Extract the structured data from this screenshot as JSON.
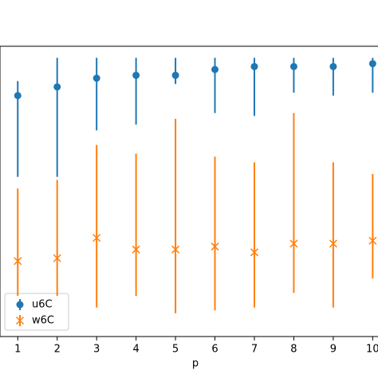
{
  "chart_data": {
    "type": "errorbar",
    "x_label": "p",
    "x": [
      1,
      2,
      3,
      4,
      5,
      6,
      7,
      8,
      9,
      10
    ],
    "xlim": [
      0.55,
      10.6
    ],
    "xticks": [
      1,
      2,
      3,
      4,
      5,
      6,
      7,
      8,
      9,
      10
    ],
    "ylim": [
      0,
      1
    ],
    "legend": "lower left",
    "series": [
      {
        "name": "u6C",
        "color": "#1f77b4",
        "marker": "circle",
        "values": [
          0.83,
          0.86,
          0.89,
          0.9,
          0.9,
          0.92,
          0.93,
          0.93,
          0.93,
          0.94
        ],
        "lows": [
          0.55,
          0.55,
          0.71,
          0.73,
          0.87,
          0.77,
          0.76,
          0.84,
          0.83,
          0.84
        ],
        "highs": [
          0.88,
          0.96,
          0.96,
          0.96,
          0.96,
          0.96,
          0.96,
          0.96,
          0.96,
          0.96
        ]
      },
      {
        "name": "w6C",
        "color": "#ff7f0e",
        "marker": "x",
        "values": [
          0.26,
          0.27,
          0.34,
          0.3,
          0.3,
          0.31,
          0.29,
          0.32,
          0.32,
          0.33
        ],
        "lows": [
          0.14,
          0.14,
          0.1,
          0.14,
          0.08,
          0.09,
          0.1,
          0.15,
          0.1,
          0.2
        ],
        "highs": [
          0.51,
          0.54,
          0.66,
          0.63,
          0.75,
          0.62,
          0.6,
          0.77,
          0.6,
          0.56
        ]
      }
    ]
  }
}
